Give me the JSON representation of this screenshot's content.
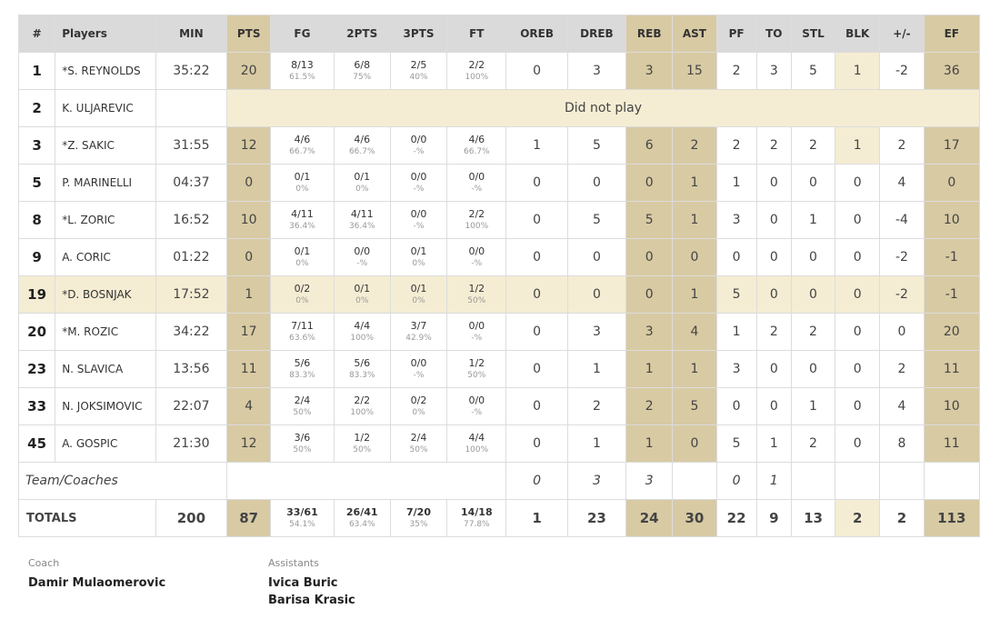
{
  "columns": [
    "#",
    "Players",
    "MIN",
    "PTS",
    "FG",
    "2PTS",
    "3PTS",
    "FT",
    "OREB",
    "DREB",
    "REB",
    "AST",
    "PF",
    "TO",
    "STL",
    "BLK",
    "+/-",
    "EF"
  ],
  "gold_columns": [
    "PTS",
    "REB",
    "AST",
    "EF"
  ],
  "colors": {
    "header_gray": "#dadada",
    "gold": "#d8caa3",
    "light_gold": "#f5edd3"
  },
  "players": [
    {
      "num": "1",
      "name": "*S. REYNOLDS",
      "min": "35:22",
      "pts": "20",
      "fg": "8/13",
      "fg_pct": "61.5%",
      "p2": "6/8",
      "p2_pct": "75%",
      "p3": "2/5",
      "p3_pct": "40%",
      "ft": "2/2",
      "ft_pct": "100%",
      "oreb": "0",
      "dreb": "3",
      "reb": "3",
      "ast": "15",
      "pf": "2",
      "to": "3",
      "stl": "5",
      "blk": "1",
      "pm": "-2",
      "ef": "36",
      "blk_highlight": true
    },
    {
      "num": "2",
      "name": "K. ULJAREVIC",
      "dnp": "Did not play"
    },
    {
      "num": "3",
      "name": "*Z. SAKIC",
      "min": "31:55",
      "pts": "12",
      "fg": "4/6",
      "fg_pct": "66.7%",
      "p2": "4/6",
      "p2_pct": "66.7%",
      "p3": "0/0",
      "p3_pct": "-%",
      "ft": "4/6",
      "ft_pct": "66.7%",
      "oreb": "1",
      "dreb": "5",
      "reb": "6",
      "ast": "2",
      "pf": "2",
      "to": "2",
      "stl": "2",
      "blk": "1",
      "pm": "2",
      "ef": "17",
      "blk_highlight": true
    },
    {
      "num": "5",
      "name": "P. MARINELLI",
      "min": "04:37",
      "pts": "0",
      "fg": "0/1",
      "fg_pct": "0%",
      "p2": "0/1",
      "p2_pct": "0%",
      "p3": "0/0",
      "p3_pct": "-%",
      "ft": "0/0",
      "ft_pct": "-%",
      "oreb": "0",
      "dreb": "0",
      "reb": "0",
      "ast": "1",
      "pf": "1",
      "to": "0",
      "stl": "0",
      "blk": "0",
      "pm": "4",
      "ef": "0"
    },
    {
      "num": "8",
      "name": "*L. ZORIC",
      "min": "16:52",
      "pts": "10",
      "fg": "4/11",
      "fg_pct": "36.4%",
      "p2": "4/11",
      "p2_pct": "36.4%",
      "p3": "0/0",
      "p3_pct": "-%",
      "ft": "2/2",
      "ft_pct": "100%",
      "oreb": "0",
      "dreb": "5",
      "reb": "5",
      "ast": "1",
      "pf": "3",
      "to": "0",
      "stl": "1",
      "blk": "0",
      "pm": "-4",
      "ef": "10"
    },
    {
      "num": "9",
      "name": "A. CORIC",
      "min": "01:22",
      "pts": "0",
      "fg": "0/1",
      "fg_pct": "0%",
      "p2": "0/0",
      "p2_pct": "-%",
      "p3": "0/1",
      "p3_pct": "0%",
      "ft": "0/0",
      "ft_pct": "-%",
      "oreb": "0",
      "dreb": "0",
      "reb": "0",
      "ast": "0",
      "pf": "0",
      "to": "0",
      "stl": "0",
      "blk": "0",
      "pm": "-2",
      "ef": "-1"
    },
    {
      "num": "19",
      "name": "*D. BOSNJAK",
      "min": "17:52",
      "pts": "1",
      "fg": "0/2",
      "fg_pct": "0%",
      "p2": "0/1",
      "p2_pct": "0%",
      "p3": "0/1",
      "p3_pct": "0%",
      "ft": "1/2",
      "ft_pct": "50%",
      "oreb": "0",
      "dreb": "0",
      "reb": "0",
      "ast": "1",
      "pf": "5",
      "to": "0",
      "stl": "0",
      "blk": "0",
      "pm": "-2",
      "ef": "-1",
      "row_highlight": true
    },
    {
      "num": "20",
      "name": "*M. ROZIC",
      "min": "34:22",
      "pts": "17",
      "fg": "7/11",
      "fg_pct": "63.6%",
      "p2": "4/4",
      "p2_pct": "100%",
      "p3": "3/7",
      "p3_pct": "42.9%",
      "ft": "0/0",
      "ft_pct": "-%",
      "oreb": "0",
      "dreb": "3",
      "reb": "3",
      "ast": "4",
      "pf": "1",
      "to": "2",
      "stl": "2",
      "blk": "0",
      "pm": "0",
      "ef": "20"
    },
    {
      "num": "23",
      "name": "N. SLAVICA",
      "min": "13:56",
      "pts": "11",
      "fg": "5/6",
      "fg_pct": "83.3%",
      "p2": "5/6",
      "p2_pct": "83.3%",
      "p3": "0/0",
      "p3_pct": "-%",
      "ft": "1/2",
      "ft_pct": "50%",
      "oreb": "0",
      "dreb": "1",
      "reb": "1",
      "ast": "1",
      "pf": "3",
      "to": "0",
      "stl": "0",
      "blk": "0",
      "pm": "2",
      "ef": "11"
    },
    {
      "num": "33",
      "name": "N. JOKSIMOVIC",
      "min": "22:07",
      "pts": "4",
      "fg": "2/4",
      "fg_pct": "50%",
      "p2": "2/2",
      "p2_pct": "100%",
      "p3": "0/2",
      "p3_pct": "0%",
      "ft": "0/0",
      "ft_pct": "-%",
      "oreb": "0",
      "dreb": "2",
      "reb": "2",
      "ast": "5",
      "pf": "0",
      "to": "0",
      "stl": "1",
      "blk": "0",
      "pm": "4",
      "ef": "10"
    },
    {
      "num": "45",
      "name": "A. GOSPIC",
      "min": "21:30",
      "pts": "12",
      "fg": "3/6",
      "fg_pct": "50%",
      "p2": "1/2",
      "p2_pct": "50%",
      "p3": "2/4",
      "p3_pct": "50%",
      "ft": "4/4",
      "ft_pct": "100%",
      "oreb": "0",
      "dreb": "1",
      "reb": "1",
      "ast": "0",
      "pf": "5",
      "to": "1",
      "stl": "2",
      "blk": "0",
      "pm": "8",
      "ef": "11"
    }
  ],
  "team": {
    "label": "Team/Coaches",
    "oreb": "0",
    "dreb": "3",
    "reb": "3",
    "ast": "",
    "pf": "0",
    "to": "1",
    "stl": "",
    "blk": "",
    "pm": "",
    "ef": ""
  },
  "totals": {
    "label": "TOTALS",
    "min": "200",
    "pts": "87",
    "fg": "33/61",
    "fg_pct": "54.1%",
    "p2": "26/41",
    "p2_pct": "63.4%",
    "p3": "7/20",
    "p3_pct": "35%",
    "ft": "14/18",
    "ft_pct": "77.8%",
    "oreb": "1",
    "dreb": "23",
    "reb": "24",
    "ast": "30",
    "pf": "22",
    "to": "9",
    "stl": "13",
    "blk": "2",
    "pm": "2",
    "ef": "113"
  },
  "staff": {
    "coach_label": "Coach",
    "coach": "Damir Mulaomerovic",
    "assistants_label": "Assistants",
    "assistants": [
      "Ivica Buric",
      "Barisa Krasic"
    ]
  }
}
